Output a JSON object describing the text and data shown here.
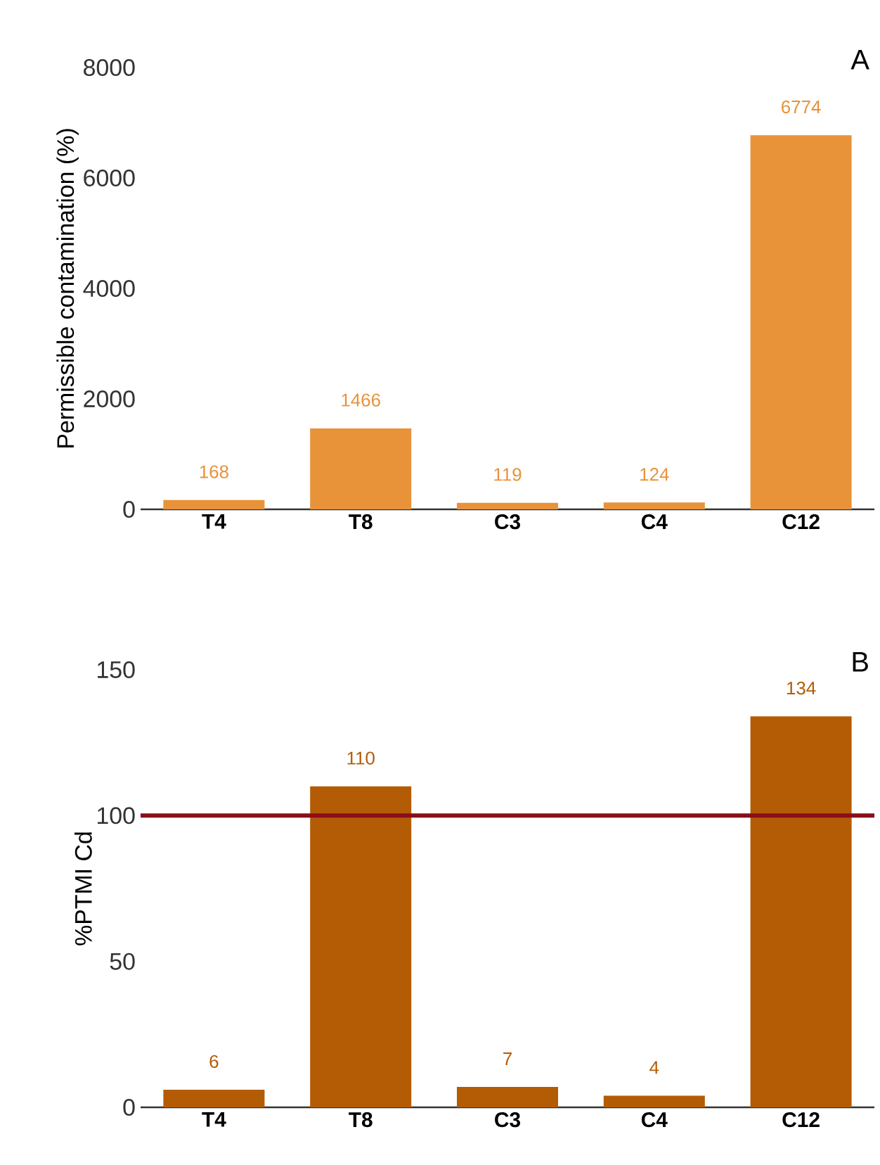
{
  "chart_data": [
    {
      "type": "bar",
      "title": "A",
      "ylabel": "Permissible contamination (%)",
      "categories": [
        "T4",
        "T8",
        "C3",
        "C4",
        "C12"
      ],
      "values": [
        168,
        1466,
        119,
        124,
        6774
      ],
      "color": "#e8923a",
      "ylim": [
        0,
        8000
      ],
      "yticks": [
        0,
        2000,
        4000,
        6000,
        8000
      ],
      "data_labels": true
    },
    {
      "type": "bar",
      "title": "B",
      "ylabel": "%PTMI Cd",
      "categories": [
        "T4",
        "T8",
        "C3",
        "C4",
        "C12"
      ],
      "values": [
        6,
        110,
        7,
        4,
        134
      ],
      "color": "#b35c05",
      "ylim": [
        0,
        150
      ],
      "yticks": [
        0,
        50,
        100,
        150
      ],
      "data_labels": true,
      "ref_lines": [
        {
          "axis": "y",
          "value": 100,
          "color": "#8b0d1a"
        }
      ]
    }
  ]
}
